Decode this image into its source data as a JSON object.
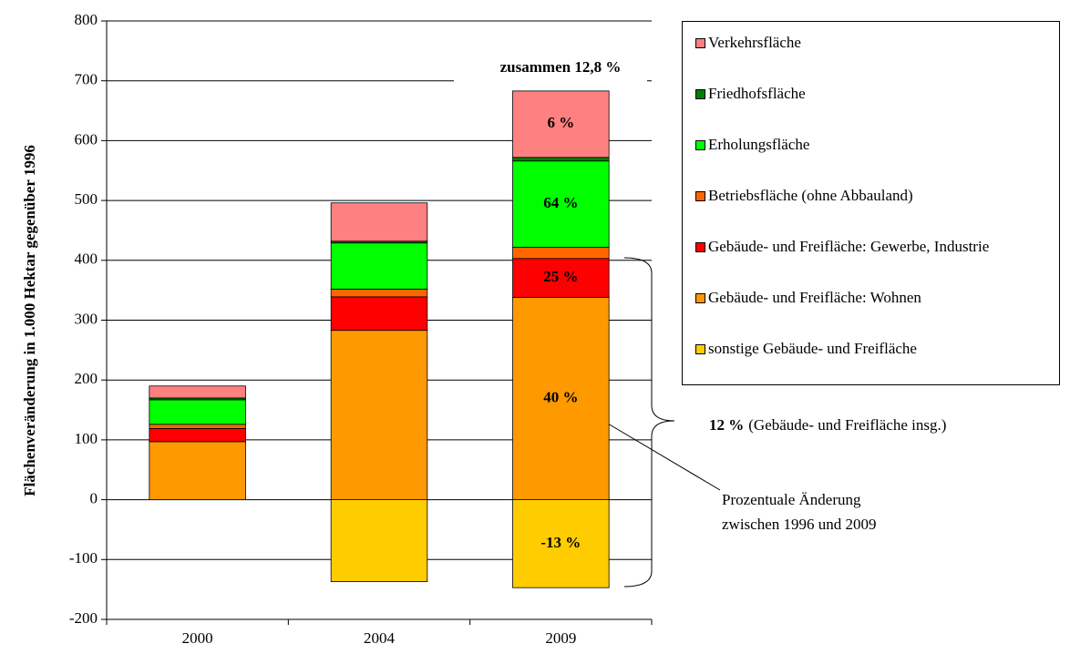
{
  "chart_data": {
    "type": "stacked_bar",
    "ylabel": "Flächenveränderung in 1.000 Hektar gegenüber 1996",
    "categories": [
      "2000",
      "2004",
      "2009"
    ],
    "series": [
      {
        "name": "sonstige Gebäude- und Freifläche",
        "color": "#ffcc00",
        "values": [
          0,
          -137,
          -147
        ],
        "change_label": "-13 %"
      },
      {
        "name": "Gebäude- und Freifläche: Wohnen",
        "color": "#ff9900",
        "values": [
          97,
          283,
          338
        ],
        "change_label": "40 %"
      },
      {
        "name": "Gebäude- und Freifläche: Gewerbe, Industrie",
        "color": "#ff0000",
        "values": [
          22,
          56,
          65
        ],
        "change_label": "25 %"
      },
      {
        "name": "Betriebsfläche (ohne Abbauland)",
        "color": "#ff6600",
        "values": [
          7,
          13,
          19
        ]
      },
      {
        "name": "Erholungsfläche",
        "color": "#00ff00",
        "values": [
          41,
          77,
          144
        ],
        "change_label": "64 %"
      },
      {
        "name": "Friedhofsfläche",
        "color": "#008000",
        "values": [
          3,
          3,
          6
        ]
      },
      {
        "name": "Verkehrsfläche",
        "color": "#ff8080",
        "values": [
          20,
          64,
          111
        ],
        "change_label": "6 %"
      }
    ],
    "ylim": [
      -200,
      800
    ],
    "yticks": [
      -200,
      -100,
      0,
      100,
      200,
      300,
      400,
      500,
      600,
      700,
      800
    ],
    "grid": true,
    "annotations": {
      "total": "zusammen 12,8 %",
      "group_bold": "12 %",
      "group_text": "(Gebäude- und Freifläche insg.)",
      "note": [
        "Prozentuale Änderung",
        "zwischen 1996 und 2009"
      ]
    }
  }
}
